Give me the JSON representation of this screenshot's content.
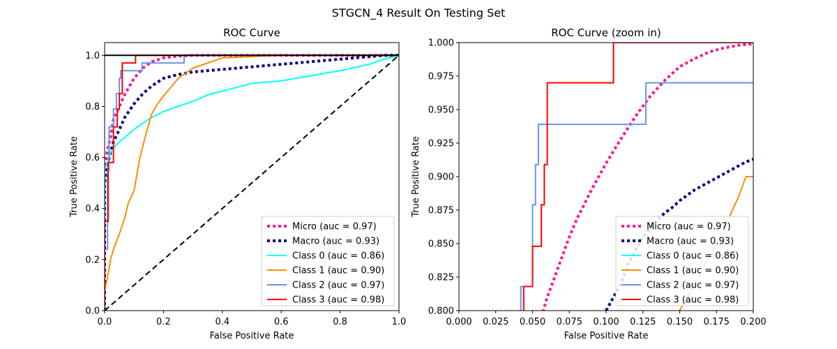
{
  "figure": {
    "title": "STGCN_4 Result On Testing Set"
  },
  "chart_data": [
    {
      "type": "line",
      "title": "ROC Curve",
      "xlabel": "False Positive Rate",
      "ylabel": "True Positive Rate",
      "xlim": [
        0,
        1
      ],
      "ylim": [
        0,
        1.05
      ],
      "xticks": [
        0,
        0.2,
        0.4,
        0.6,
        0.8,
        1.0
      ],
      "xtick_labels": [
        "0.0",
        "0.2",
        "0.4",
        "0.6",
        "0.8",
        "1.0"
      ],
      "yticks": [
        0,
        0.2,
        0.4,
        0.6,
        0.8,
        1.0
      ],
      "ytick_labels": [
        "0.0",
        "0.2",
        "0.4",
        "0.6",
        "0.8",
        "1.0"
      ],
      "grid": false,
      "legend_position": "lower-right",
      "series": [
        {
          "name": "Micro (auc = 0.97)",
          "color": "#ff1493",
          "style": "dotted",
          "width": 4,
          "x": [
            0,
            0.0,
            0.005,
            0.01,
            0.02,
            0.03,
            0.05,
            0.07,
            0.1,
            0.13,
            0.16,
            0.2,
            0.25,
            0.3,
            0.4,
            0.6,
            0.8,
            1.0
          ],
          "y": [
            0,
            0.55,
            0.6,
            0.63,
            0.68,
            0.75,
            0.8,
            0.85,
            0.91,
            0.95,
            0.975,
            0.99,
            0.997,
            1.0,
            1.0,
            1.0,
            1.0,
            1.0
          ]
        },
        {
          "name": "Macro (auc = 0.93)",
          "color": "#000080",
          "style": "dotted",
          "width": 4,
          "x": [
            0,
            0.0,
            0.01,
            0.02,
            0.03,
            0.05,
            0.07,
            0.1,
            0.13,
            0.16,
            0.2,
            0.25,
            0.3,
            0.4,
            0.5,
            0.6,
            0.7,
            0.8,
            0.9,
            0.95,
            1.0
          ],
          "y": [
            0,
            0.5,
            0.57,
            0.62,
            0.66,
            0.71,
            0.76,
            0.81,
            0.85,
            0.88,
            0.91,
            0.925,
            0.935,
            0.945,
            0.955,
            0.965,
            0.975,
            0.985,
            0.995,
            1.0,
            1.0
          ]
        },
        {
          "name": "Class 0 (auc = 0.86)",
          "color": "#00ffff",
          "style": "solid",
          "width": 2,
          "x": [
            0,
            0.0,
            0.005,
            0.01,
            0.02,
            0.04,
            0.06,
            0.1,
            0.15,
            0.2,
            0.25,
            0.3,
            0.35,
            0.4,
            0.5,
            0.6,
            0.7,
            0.8,
            0.9,
            0.95,
            1.0
          ],
          "y": [
            0,
            0.55,
            0.57,
            0.58,
            0.62,
            0.65,
            0.67,
            0.71,
            0.75,
            0.78,
            0.8,
            0.82,
            0.845,
            0.86,
            0.89,
            0.9,
            0.92,
            0.94,
            0.965,
            0.985,
            1.0
          ]
        },
        {
          "name": "Class 1 (auc = 0.90)",
          "color": "#ff8c00",
          "style": "solid",
          "width": 2,
          "x": [
            0,
            0.0,
            0.01,
            0.02,
            0.03,
            0.05,
            0.07,
            0.08,
            0.1,
            0.12,
            0.14,
            0.16,
            0.18,
            0.2,
            0.25,
            0.3,
            0.35,
            0.4,
            0.5,
            0.6,
            0.8,
            1.0
          ],
          "y": [
            0,
            0.08,
            0.13,
            0.2,
            0.24,
            0.3,
            0.37,
            0.42,
            0.47,
            0.6,
            0.69,
            0.77,
            0.81,
            0.84,
            0.91,
            0.95,
            0.97,
            0.99,
            0.995,
            1.0,
            1.0,
            1.0
          ]
        },
        {
          "name": "Class 2 (auc = 0.97)",
          "color": "#6495ed",
          "style": "solid",
          "width": 2,
          "step": true,
          "x": [
            0,
            0.0,
            0.01,
            0.01,
            0.015,
            0.015,
            0.03,
            0.03,
            0.04,
            0.04,
            0.05,
            0.05,
            0.055,
            0.055,
            0.127,
            0.127,
            0.27,
            0.27,
            1.0
          ],
          "y": [
            0,
            0.24,
            0.24,
            0.55,
            0.55,
            0.72,
            0.72,
            0.79,
            0.79,
            0.85,
            0.85,
            0.91,
            0.91,
            0.94,
            0.94,
            0.97,
            0.97,
            1.0,
            1.0
          ]
        },
        {
          "name": "Class 3 (auc = 0.98)",
          "color": "#ff0000",
          "style": "solid",
          "width": 2,
          "step": true,
          "x": [
            0,
            0.0,
            0.012,
            0.012,
            0.03,
            0.03,
            0.043,
            0.043,
            0.05,
            0.05,
            0.06,
            0.06,
            0.105,
            0.105,
            1.0
          ],
          "y": [
            0,
            0.35,
            0.35,
            0.58,
            0.58,
            0.72,
            0.72,
            0.79,
            0.79,
            0.85,
            0.85,
            0.97,
            0.97,
            1.0,
            1.0
          ]
        },
        {
          "name": "",
          "color": "#000000",
          "style": "dashed",
          "width": 2,
          "x": [
            0,
            1
          ],
          "y": [
            0,
            1
          ]
        },
        {
          "name": "",
          "color": "#000000",
          "style": "solid",
          "width": 2,
          "x": [
            0,
            1
          ],
          "y": [
            1,
            1
          ]
        }
      ],
      "legend": [
        {
          "label": "Micro (auc = 0.97)",
          "color": "#ff1493",
          "style": "dotted"
        },
        {
          "label": "Macro (auc = 0.93)",
          "color": "#000080",
          "style": "dotted"
        },
        {
          "label": "Class 0 (auc = 0.86)",
          "color": "#00ffff",
          "style": "solid"
        },
        {
          "label": "Class 1 (auc = 0.90)",
          "color": "#ff8c00",
          "style": "solid"
        },
        {
          "label": "Class 2 (auc = 0.97)",
          "color": "#6495ed",
          "style": "solid"
        },
        {
          "label": "Class 3 (auc = 0.98)",
          "color": "#ff0000",
          "style": "solid"
        }
      ]
    },
    {
      "type": "line",
      "title": "ROC Curve (zoom in)",
      "xlabel": "False Positive Rate",
      "ylabel": "True Positive Rate",
      "xlim": [
        0,
        0.2
      ],
      "ylim": [
        0.8,
        1.0
      ],
      "xticks": [
        0,
        0.025,
        0.05,
        0.075,
        0.1,
        0.125,
        0.15,
        0.175,
        0.2
      ],
      "xtick_labels": [
        "0.000",
        "0.025",
        "0.050",
        "0.075",
        "0.100",
        "0.125",
        "0.150",
        "0.175",
        "0.200"
      ],
      "yticks": [
        0.8,
        0.825,
        0.85,
        0.875,
        0.9,
        0.925,
        0.95,
        0.975,
        1.0
      ],
      "ytick_labels": [
        "0.800",
        "0.825",
        "0.850",
        "0.875",
        "0.900",
        "0.925",
        "0.950",
        "0.975",
        "1.000"
      ],
      "grid": false,
      "legend_position": "lower-right",
      "series": [
        {
          "name": "Micro (auc = 0.97)",
          "color": "#ff1493",
          "style": "dotted",
          "width": 4,
          "x": [
            0.056,
            0.06,
            0.065,
            0.07,
            0.075,
            0.08,
            0.09,
            0.1,
            0.11,
            0.12,
            0.13,
            0.14,
            0.15,
            0.16,
            0.17,
            0.18,
            0.19,
            0.2
          ],
          "y": [
            0.795,
            0.81,
            0.825,
            0.84,
            0.855,
            0.868,
            0.89,
            0.91,
            0.928,
            0.945,
            0.96,
            0.972,
            0.982,
            0.988,
            0.993,
            0.996,
            0.998,
            0.999
          ]
        },
        {
          "name": "Macro (auc = 0.93)",
          "color": "#000080",
          "style": "dotted",
          "width": 4,
          "x": [
            0.1,
            0.105,
            0.11,
            0.115,
            0.12,
            0.125,
            0.13,
            0.135,
            0.14,
            0.145,
            0.15,
            0.155,
            0.16,
            0.165,
            0.17,
            0.175,
            0.18,
            0.185,
            0.19,
            0.195,
            0.2
          ],
          "y": [
            0.8,
            0.81,
            0.82,
            0.835,
            0.845,
            0.855,
            0.862,
            0.868,
            0.873,
            0.877,
            0.882,
            0.886,
            0.89,
            0.893,
            0.896,
            0.899,
            0.902,
            0.905,
            0.908,
            0.911,
            0.913
          ]
        },
        {
          "name": "Class 1 (auc = 0.90)",
          "color": "#ff8c00",
          "style": "solid",
          "width": 2,
          "x": [
            0.15,
            0.155,
            0.16,
            0.165,
            0.17,
            0.175,
            0.18,
            0.185,
            0.19,
            0.195,
            0.2
          ],
          "y": [
            0.8,
            0.81,
            0.82,
            0.83,
            0.84,
            0.85,
            0.86,
            0.873,
            0.885,
            0.9,
            0.9
          ]
        },
        {
          "name": "Class 2 (auc = 0.97)",
          "color": "#6495ed",
          "style": "solid",
          "width": 2,
          "step": true,
          "x": [
            0.042,
            0.042,
            0.05,
            0.05,
            0.052,
            0.052,
            0.054,
            0.054,
            0.127,
            0.127,
            0.2
          ],
          "y": [
            0.8,
            0.818,
            0.818,
            0.879,
            0.879,
            0.909,
            0.909,
            0.939,
            0.939,
            0.97,
            0.97
          ]
        },
        {
          "name": "Class 3 (auc = 0.98)",
          "color": "#ff0000",
          "style": "solid",
          "width": 2,
          "step": true,
          "x": [
            0.044,
            0.044,
            0.05,
            0.05,
            0.056,
            0.056,
            0.058,
            0.058,
            0.06,
            0.06,
            0.105,
            0.105,
            0.2
          ],
          "y": [
            0.8,
            0.818,
            0.818,
            0.848,
            0.848,
            0.879,
            0.879,
            0.909,
            0.909,
            0.97,
            0.97,
            1.0,
            1.0
          ]
        }
      ],
      "legend": [
        {
          "label": "Micro (auc = 0.97)",
          "color": "#ff1493",
          "style": "dotted"
        },
        {
          "label": "Macro (auc = 0.93)",
          "color": "#000080",
          "style": "dotted"
        },
        {
          "label": "Class 0 (auc = 0.86)",
          "color": "#00ffff",
          "style": "solid"
        },
        {
          "label": "Class 1 (auc = 0.90)",
          "color": "#ff8c00",
          "style": "solid"
        },
        {
          "label": "Class 2 (auc = 0.97)",
          "color": "#6495ed",
          "style": "solid"
        },
        {
          "label": "Class 3 (auc = 0.98)",
          "color": "#ff0000",
          "style": "solid"
        }
      ]
    }
  ]
}
